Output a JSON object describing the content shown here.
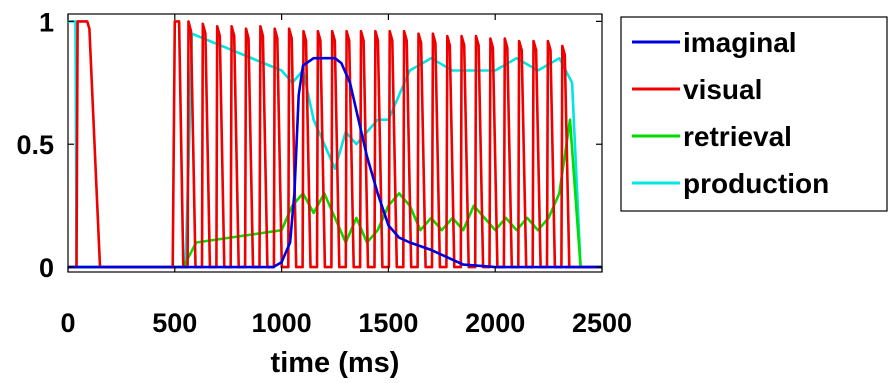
{
  "chart_data": {
    "type": "line",
    "xlabel": "time (ms)",
    "ylabel": "",
    "xlim": [
      0,
      2500
    ],
    "ylim": [
      -0.02,
      1.03
    ],
    "xticks": [
      "0",
      "500",
      "1000",
      "1500",
      "2000",
      "2500"
    ],
    "yticks": [
      "0",
      "0.5",
      "1"
    ],
    "grid": false,
    "legend_position": "outside-right",
    "series": [
      {
        "name": "imaginal",
        "color": "#0000dd",
        "x": [
          0,
          560,
          600,
          960,
          1000,
          1040,
          1060,
          1080,
          1100,
          1150,
          1250,
          1280,
          1320,
          1400,
          1450,
          1500,
          1550,
          1600,
          1700,
          1800,
          1850,
          2000,
          2300,
          2400,
          2500
        ],
        "y": [
          0,
          0,
          0,
          0,
          0.02,
          0.1,
          0.3,
          0.7,
          0.82,
          0.85,
          0.85,
          0.83,
          0.75,
          0.45,
          0.3,
          0.17,
          0.12,
          0.1,
          0.07,
          0.03,
          0.01,
          0,
          0,
          0,
          0
        ]
      },
      {
        "name": "visual",
        "color": "#ee0000",
        "x": [
          0,
          40,
          45,
          90,
          100,
          150,
          490,
          500,
          520,
          540
        ],
        "y": [
          0,
          0,
          1,
          1,
          0.97,
          0,
          0,
          1,
          1,
          0
        ],
        "spike_peaks": [
          1.0,
          0.99,
          0.98,
          0.98,
          0.97,
          0.98,
          0.97,
          0.97,
          0.96,
          0.96,
          0.96,
          0.96,
          0.96,
          0.96,
          0.96,
          0.96,
          0.95,
          0.95,
          0.94,
          0.94,
          0.94,
          0.93,
          0.93,
          0.92,
          0.92,
          0.92,
          0.9
        ],
        "spike_start_x": 560,
        "spike_end_x": 2310
      },
      {
        "name": "retrieval",
        "color": "#00dd00",
        "x": [
          0,
          540,
          600,
          1000,
          1050,
          1100,
          1150,
          1200,
          1250,
          1300,
          1350,
          1400,
          1450,
          1500,
          1550,
          1600,
          1650,
          1700,
          1750,
          1800,
          1850,
          1900,
          1950,
          2000,
          2050,
          2100,
          2150,
          2200,
          2250,
          2300,
          2350,
          2400,
          2500
        ],
        "y": [
          0,
          0,
          0.1,
          0.15,
          0.25,
          0.3,
          0.22,
          0.3,
          0.2,
          0.1,
          0.2,
          0.1,
          0.15,
          0.25,
          0.3,
          0.25,
          0.15,
          0.2,
          0.15,
          0.2,
          0.15,
          0.25,
          0.2,
          0.15,
          0.2,
          0.15,
          0.2,
          0.15,
          0.2,
          0.3,
          0.6,
          0,
          0
        ]
      },
      {
        "name": "production",
        "color": "#00e5e5",
        "x": [
          0,
          25,
          35,
          40,
          45,
          550,
          570,
          580,
          1000,
          1050,
          1100,
          1150,
          1200,
          1250,
          1300,
          1350,
          1400,
          1450,
          1500,
          1550,
          1600,
          1700,
          1800,
          1900,
          2000,
          2100,
          2200,
          2300,
          2360,
          2400,
          2500
        ],
        "y": [
          1,
          1,
          1,
          0,
          0,
          0,
          0.6,
          0.95,
          0.8,
          0.75,
          0.8,
          0.6,
          0.5,
          0.4,
          0.55,
          0.5,
          0.55,
          0.6,
          0.6,
          0.7,
          0.8,
          0.85,
          0.8,
          0.8,
          0.8,
          0.85,
          0.8,
          0.85,
          0.75,
          0,
          0
        ]
      }
    ]
  }
}
